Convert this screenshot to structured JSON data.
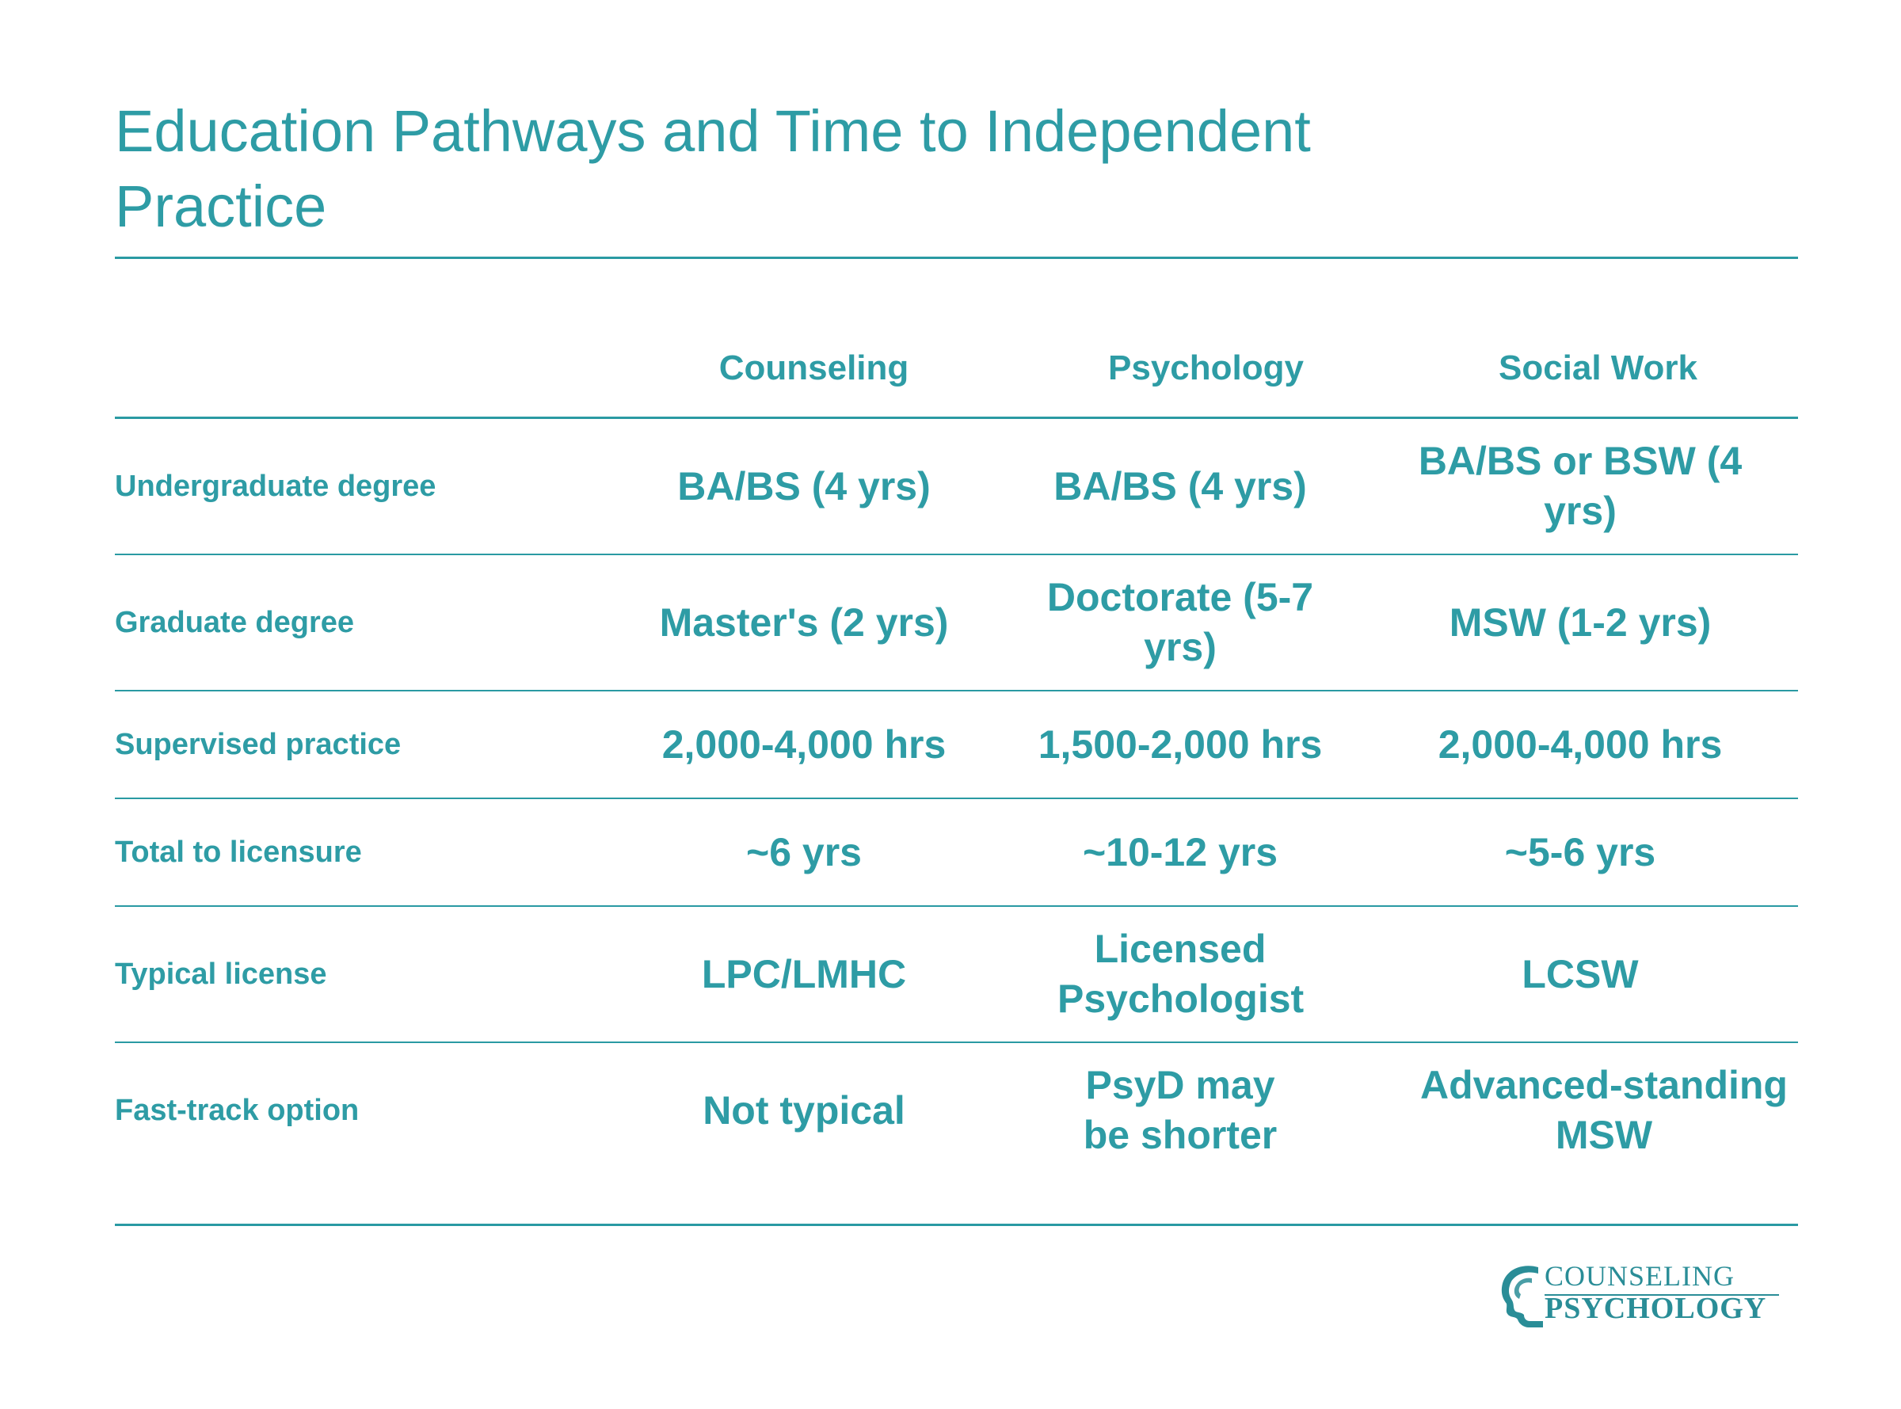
{
  "title": "Education Pathways and Time to Independent Practice",
  "table": {
    "headers": [
      "Counseling",
      "Psychology",
      "Social Work"
    ],
    "rows": [
      {
        "label": "Undergraduate degree",
        "values": [
          "BA/BS (4 yrs)",
          "BA/BS (4 yrs)",
          "BA/BS or BSW (4 yrs)"
        ]
      },
      {
        "label": "Graduate degree",
        "values": [
          "Master's (2 yrs)",
          "Doctorate (5-7 yrs)",
          "MSW (1-2 yrs)"
        ]
      },
      {
        "label": "Supervised practice",
        "values": [
          "2,000-4,000 hrs",
          "1,500-2,000 hrs",
          "2,000-4,000 hrs"
        ]
      },
      {
        "label": "Total to licensure",
        "values": [
          "~6 yrs",
          "~10-12 yrs",
          "~5-6 yrs"
        ]
      },
      {
        "label": "Typical license",
        "values": [
          "LPC/LMHC",
          "Licensed Psychologist",
          "LCSW"
        ]
      },
      {
        "label": "Fast-track option",
        "values": [
          "Not typical",
          "PsyD may be shorter",
          "Advanced-standing MSW"
        ]
      }
    ]
  },
  "logo": {
    "line1": "COUNSELING",
    "line2": "PSYCHOLOGY",
    "icon": "head-profile-icon"
  },
  "colors": {
    "accent": "#2e9ca5",
    "rule": "#2a9aa3",
    "background": "#ffffff"
  }
}
